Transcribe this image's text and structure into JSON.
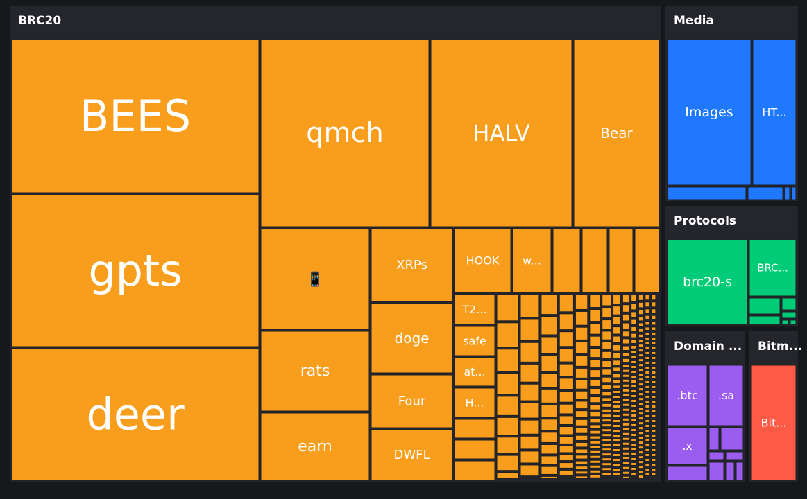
{
  "groups": [
    {
      "title": "BRC20",
      "color": "#f99d1c",
      "tiles": [
        "BEES",
        "gpts",
        "deer",
        "qmch",
        "HALV",
        "Bear",
        "📱",
        "rats",
        "earn",
        "XRPs",
        "doge",
        "Four",
        "DWFL",
        "HOOK",
        "w...",
        "T2...",
        "safe",
        "at...",
        "H..."
      ]
    },
    {
      "title": "Media",
      "color": "#1f78ff",
      "tiles": [
        "Images",
        "HT..."
      ]
    },
    {
      "title": "Protocols",
      "color": "#00cc78",
      "tiles": [
        "brc20-s",
        "BRC..."
      ]
    },
    {
      "title": "Domain ...",
      "color": "#9b5cf0",
      "tiles": [
        ".btc",
        ".sa",
        ".x"
      ]
    },
    {
      "title": "Bitm...",
      "color": "#ff5a46",
      "tiles": [
        "Bit..."
      ]
    }
  ]
}
